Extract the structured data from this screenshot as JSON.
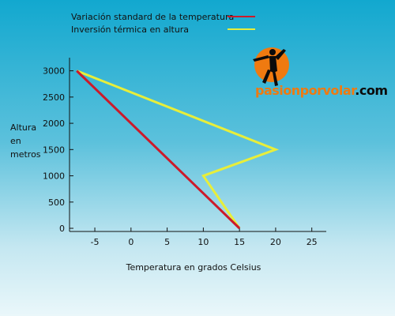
{
  "chart_data": {
    "type": "line",
    "title": "",
    "xlabel": "Temperatura en grados Celsius",
    "ylabel": [
      "Altura",
      "en",
      "metros"
    ],
    "xlim": [
      -8.5,
      27
    ],
    "ylim": [
      -60,
      3250
    ],
    "xticks": [
      -5,
      0,
      5,
      10,
      15,
      20,
      25
    ],
    "yticks": [
      0,
      500,
      1000,
      1500,
      2000,
      2500,
      3000
    ],
    "legend_position": "top-center",
    "grid": false,
    "series": [
      {
        "name": "Variación standard de la temperatura",
        "color": "#cc1a2a",
        "points": [
          [
            15,
            0
          ],
          [
            -7.5,
            3000
          ]
        ]
      },
      {
        "name": "Inversión térmica en altura",
        "color": "#e8ee3a",
        "points": [
          [
            15,
            0
          ],
          [
            10,
            1000
          ],
          [
            20,
            1500
          ],
          [
            -7.5,
            3000
          ]
        ]
      }
    ]
  },
  "logo": {
    "brand": "pasionporvolar",
    "tld": ".com",
    "sun_color": "#ef7a10",
    "figure_color": "#0b0b0b"
  }
}
